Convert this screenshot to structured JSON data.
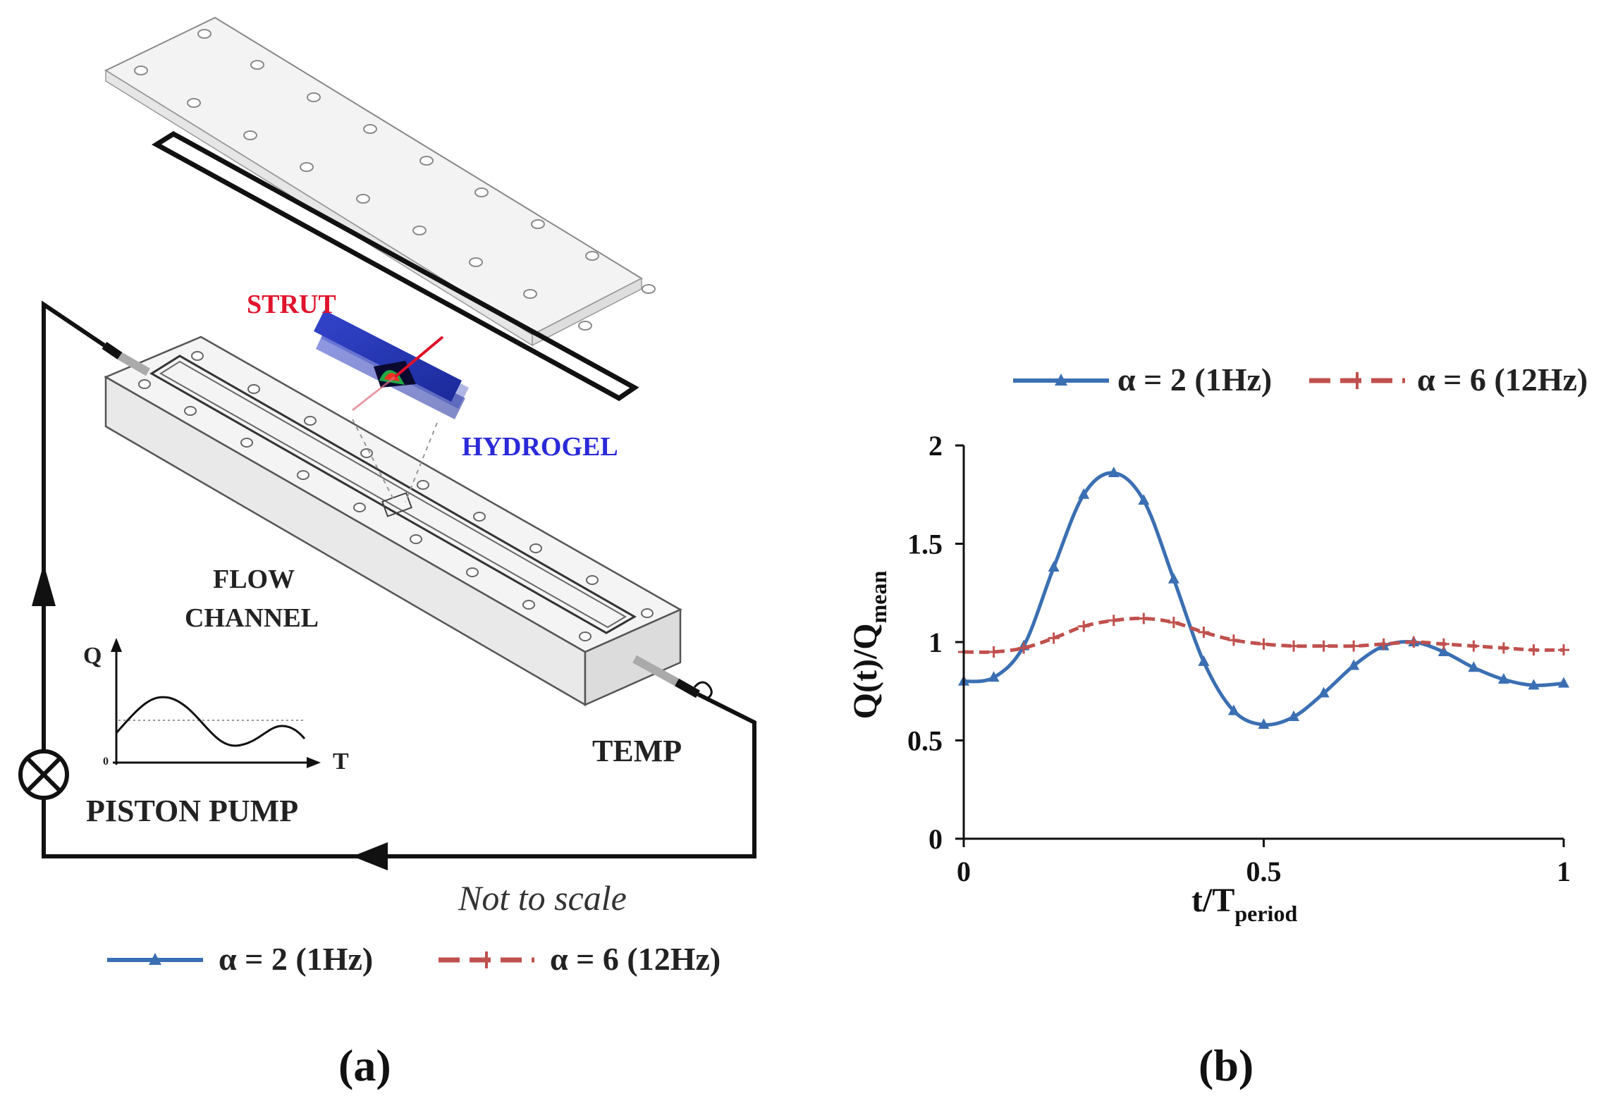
{
  "panel_a": {
    "labels": {
      "strut": "STRUT",
      "hydrogel": "HYDROGEL",
      "flow_line1": "FLOW",
      "flow_line2": "CHANNEL",
      "temp": "TEMP",
      "piston_pump": "PISTON PUMP",
      "scale_note": "Not to scale",
      "inset_y": "Q",
      "inset_x": "T",
      "inset_origin": "0"
    },
    "legend": [
      {
        "name": "α = 2 (1Hz)",
        "color": "#3b6fb3",
        "marker": "triangle"
      },
      {
        "name": "α = 6 (12Hz)",
        "color": "#c0504d",
        "marker": "plus"
      }
    ],
    "caption": "(a)"
  },
  "panel_b": {
    "caption": "(b)",
    "chart_data": {
      "type": "line",
      "title": "",
      "xlabel": "t/T",
      "xlabel_sub": "period",
      "ylabel": "Q(t)/Q",
      "ylabel_sub": "mean",
      "xlim": [
        0,
        1
      ],
      "ylim": [
        0,
        2
      ],
      "xticks": [
        0,
        0.5,
        1
      ],
      "xtick_labels": [
        "0",
        "0.5",
        "1"
      ],
      "yticks": [
        0,
        0.5,
        1,
        1.5,
        2
      ],
      "ytick_labels": [
        "0",
        "0.5",
        "1",
        "1.5",
        "2"
      ],
      "legend_position": "top",
      "x": [
        0,
        0.05,
        0.1,
        0.15,
        0.2,
        0.25,
        0.3,
        0.35,
        0.4,
        0.45,
        0.5,
        0.55,
        0.6,
        0.65,
        0.7,
        0.75,
        0.8,
        0.85,
        0.9,
        0.95,
        1.0
      ],
      "series": [
        {
          "name": "α = 2 (1Hz)",
          "color": "#3b6fb3",
          "marker": "triangle",
          "line": "solid",
          "values": [
            0.8,
            0.82,
            0.98,
            1.38,
            1.75,
            1.86,
            1.72,
            1.32,
            0.9,
            0.65,
            0.58,
            0.62,
            0.74,
            0.88,
            0.98,
            1.0,
            0.95,
            0.87,
            0.81,
            0.78,
            0.79
          ]
        },
        {
          "name": "α = 6 (12Hz)",
          "color": "#c0504d",
          "marker": "plus",
          "line": "dashed",
          "values": [
            0.95,
            0.95,
            0.97,
            1.02,
            1.08,
            1.11,
            1.12,
            1.1,
            1.05,
            1.01,
            0.99,
            0.98,
            0.98,
            0.98,
            0.99,
            1.0,
            0.99,
            0.98,
            0.97,
            0.96,
            0.96
          ]
        }
      ]
    }
  }
}
